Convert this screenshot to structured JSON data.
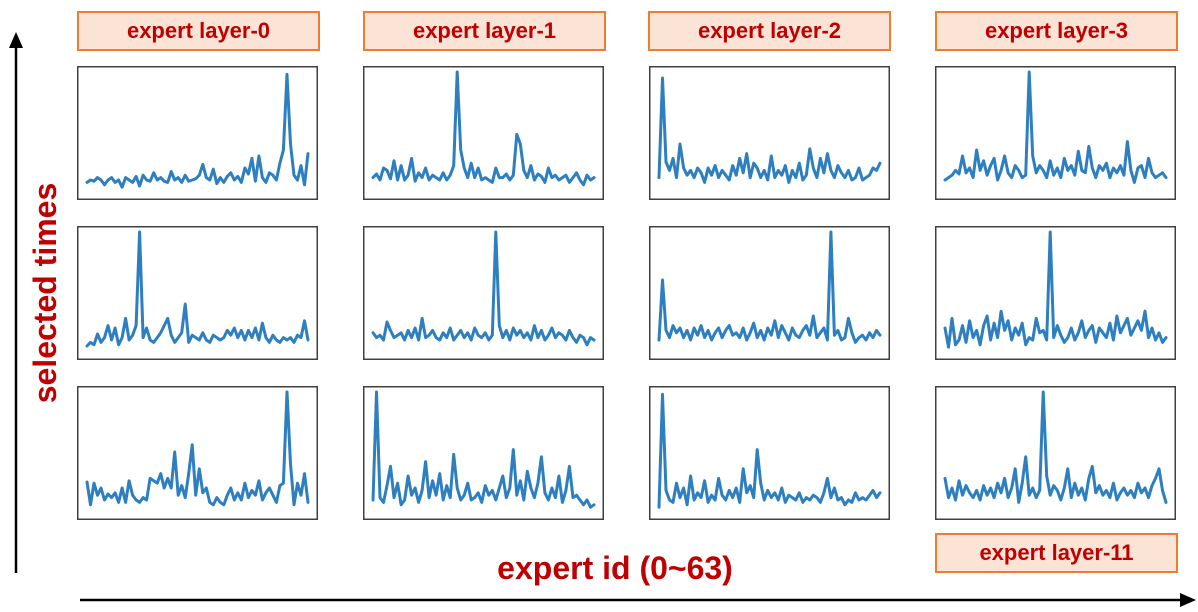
{
  "figure": {
    "x_axis_label": "expert id (0~63)",
    "y_axis_label": "selected times",
    "line_color": "#2e7fc0",
    "label_text_color": "#c00000",
    "label_fill_color": "#fbe3d6",
    "label_border_color": "#ed7d31"
  },
  "layer_labels": [
    "expert layer-0",
    "expert layer-1",
    "expert layer-2",
    "expert layer-3",
    "expert layer-11"
  ],
  "chart_data": [
    {
      "type": "line",
      "layer": "expert layer-0",
      "row": 0,
      "x_range": [
        0,
        63
      ],
      "ylim": [
        0,
        1
      ],
      "values": [
        0.08,
        0.1,
        0.09,
        0.12,
        0.1,
        0.06,
        0.1,
        0.12,
        0.08,
        0.1,
        0.04,
        0.12,
        0.1,
        0.08,
        0.13,
        0.05,
        0.14,
        0.1,
        0.09,
        0.16,
        0.1,
        0.12,
        0.09,
        0.08,
        0.17,
        0.1,
        0.12,
        0.08,
        0.14,
        0.09,
        0.1,
        0.11,
        0.14,
        0.23,
        0.12,
        0.1,
        0.19,
        0.07,
        0.12,
        0.08,
        0.13,
        0.16,
        0.1,
        0.13,
        0.08,
        0.2,
        0.15,
        0.28,
        0.09,
        0.3,
        0.12,
        0.08,
        0.16,
        0.14,
        0.1,
        0.24,
        0.35,
        0.98,
        0.4,
        0.14,
        0.1,
        0.22,
        0.06,
        0.32
      ]
    },
    {
      "type": "line",
      "layer": "expert layer-1",
      "row": 0,
      "x_range": [
        0,
        63
      ],
      "ylim": [
        0,
        1
      ],
      "values": [
        0.12,
        0.15,
        0.1,
        0.2,
        0.18,
        0.11,
        0.26,
        0.1,
        0.22,
        0.1,
        0.14,
        0.28,
        0.09,
        0.16,
        0.12,
        0.2,
        0.1,
        0.14,
        0.12,
        0.1,
        0.16,
        0.1,
        0.14,
        0.22,
        1.0,
        0.35,
        0.2,
        0.12,
        0.24,
        0.12,
        0.2,
        0.1,
        0.12,
        0.1,
        0.08,
        0.2,
        0.12,
        0.12,
        0.15,
        0.1,
        0.14,
        0.48,
        0.4,
        0.18,
        0.12,
        0.22,
        0.1,
        0.15,
        0.13,
        0.08,
        0.2,
        0.12,
        0.14,
        0.1,
        0.12,
        0.14,
        0.08,
        0.12,
        0.16,
        0.1,
        0.06,
        0.14,
        0.1,
        0.12
      ]
    },
    {
      "type": "line",
      "layer": "expert layer-2",
      "row": 0,
      "x_range": [
        0,
        63
      ],
      "ylim": [
        0,
        1
      ],
      "values": [
        0.12,
        0.95,
        0.25,
        0.18,
        0.28,
        0.12,
        0.4,
        0.2,
        0.14,
        0.18,
        0.12,
        0.2,
        0.16,
        0.08,
        0.2,
        0.14,
        0.22,
        0.12,
        0.18,
        0.14,
        0.1,
        0.22,
        0.14,
        0.28,
        0.16,
        0.32,
        0.12,
        0.24,
        0.2,
        0.12,
        0.18,
        0.1,
        0.3,
        0.12,
        0.18,
        0.14,
        0.22,
        0.08,
        0.18,
        0.12,
        0.24,
        0.1,
        0.14,
        0.36,
        0.2,
        0.12,
        0.28,
        0.16,
        0.32,
        0.18,
        0.12,
        0.22,
        0.16,
        0.12,
        0.18,
        0.1,
        0.12,
        0.2,
        0.1,
        0.12,
        0.14,
        0.2,
        0.18,
        0.24
      ]
    },
    {
      "type": "line",
      "layer": "expert layer-3",
      "row": 0,
      "x_range": [
        0,
        63
      ],
      "ylim": [
        0,
        1
      ],
      "values": [
        0.1,
        0.12,
        0.14,
        0.18,
        0.15,
        0.3,
        0.16,
        0.2,
        0.12,
        0.35,
        0.18,
        0.26,
        0.14,
        0.22,
        0.28,
        0.1,
        0.18,
        0.3,
        0.16,
        0.12,
        0.22,
        0.18,
        0.12,
        0.14,
        1.0,
        0.3,
        0.16,
        0.22,
        0.18,
        0.12,
        0.26,
        0.14,
        0.2,
        0.12,
        0.28,
        0.18,
        0.22,
        0.14,
        0.34,
        0.18,
        0.16,
        0.38,
        0.2,
        0.12,
        0.22,
        0.18,
        0.24,
        0.12,
        0.2,
        0.16,
        0.22,
        0.14,
        0.42,
        0.18,
        0.08,
        0.2,
        0.22,
        0.12,
        0.28,
        0.16,
        0.12,
        0.14,
        0.16,
        0.12
      ]
    },
    {
      "type": "line",
      "layer": "expert layer-0",
      "row": 1,
      "x_range": [
        0,
        63
      ],
      "ylim": [
        0,
        1
      ],
      "values": [
        0.05,
        0.08,
        0.06,
        0.15,
        0.08,
        0.12,
        0.22,
        0.1,
        0.2,
        0.06,
        0.12,
        0.28,
        0.1,
        0.14,
        0.22,
        1.0,
        0.12,
        0.2,
        0.1,
        0.08,
        0.12,
        0.16,
        0.22,
        0.28,
        0.14,
        0.08,
        0.12,
        0.16,
        0.4,
        0.08,
        0.14,
        0.12,
        0.1,
        0.16,
        0.1,
        0.08,
        0.14,
        0.12,
        0.1,
        0.12,
        0.18,
        0.14,
        0.2,
        0.12,
        0.18,
        0.1,
        0.18,
        0.12,
        0.2,
        0.1,
        0.24,
        0.12,
        0.08,
        0.14,
        0.1,
        0.08,
        0.12,
        0.1,
        0.12,
        0.08,
        0.14,
        0.12,
        0.26,
        0.1
      ]
    },
    {
      "type": "line",
      "layer": "expert layer-1",
      "row": 1,
      "x_range": [
        0,
        63
      ],
      "ylim": [
        0,
        1
      ],
      "values": [
        0.16,
        0.12,
        0.14,
        0.1,
        0.25,
        0.18,
        0.12,
        0.14,
        0.16,
        0.1,
        0.18,
        0.12,
        0.2,
        0.1,
        0.28,
        0.12,
        0.14,
        0.18,
        0.12,
        0.1,
        0.16,
        0.12,
        0.2,
        0.1,
        0.14,
        0.18,
        0.12,
        0.16,
        0.1,
        0.2,
        0.14,
        0.12,
        0.16,
        0.1,
        0.14,
        1.0,
        0.22,
        0.12,
        0.18,
        0.1,
        0.2,
        0.14,
        0.18,
        0.12,
        0.16,
        0.1,
        0.22,
        0.12,
        0.18,
        0.1,
        0.14,
        0.2,
        0.12,
        0.16,
        0.14,
        0.1,
        0.18,
        0.12,
        0.08,
        0.14,
        0.12,
        0.06,
        0.12,
        0.1
      ]
    },
    {
      "type": "line",
      "layer": "expert layer-2",
      "row": 1,
      "x_range": [
        0,
        63
      ],
      "ylim": [
        0,
        1
      ],
      "values": [
        0.1,
        0.6,
        0.18,
        0.12,
        0.22,
        0.16,
        0.2,
        0.12,
        0.18,
        0.1,
        0.2,
        0.14,
        0.22,
        0.12,
        0.18,
        0.1,
        0.16,
        0.2,
        0.12,
        0.18,
        0.22,
        0.14,
        0.16,
        0.12,
        0.2,
        0.1,
        0.16,
        0.24,
        0.12,
        0.18,
        0.1,
        0.2,
        0.14,
        0.26,
        0.12,
        0.22,
        0.16,
        0.1,
        0.2,
        0.14,
        0.12,
        0.18,
        0.22,
        0.14,
        0.3,
        0.12,
        0.16,
        0.2,
        0.1,
        1.0,
        0.14,
        0.18,
        0.1,
        0.12,
        0.28,
        0.16,
        0.08,
        0.12,
        0.14,
        0.1,
        0.16,
        0.12,
        0.18,
        0.14
      ]
    },
    {
      "type": "line",
      "layer": "expert layer-3",
      "row": 1,
      "x_range": [
        0,
        63
      ],
      "ylim": [
        0,
        1
      ],
      "values": [
        0.2,
        0.04,
        0.28,
        0.06,
        0.1,
        0.22,
        0.08,
        0.26,
        0.12,
        0.18,
        0.06,
        0.22,
        0.3,
        0.1,
        0.24,
        0.12,
        0.34,
        0.18,
        0.26,
        0.1,
        0.2,
        0.14,
        0.24,
        0.06,
        0.12,
        0.1,
        0.28,
        0.16,
        0.18,
        0.1,
        1.0,
        0.12,
        0.22,
        0.14,
        0.08,
        0.12,
        0.2,
        0.1,
        0.16,
        0.26,
        0.12,
        0.18,
        0.22,
        0.08,
        0.2,
        0.16,
        0.12,
        0.24,
        0.1,
        0.3,
        0.16,
        0.22,
        0.28,
        0.14,
        0.2,
        0.26,
        0.18,
        0.34,
        0.12,
        0.2,
        0.1,
        0.16,
        0.08,
        0.12
      ]
    },
    {
      "type": "line",
      "layer": "expert layer-0",
      "row": 2,
      "x_range": [
        0,
        63
      ],
      "ylim": [
        0,
        1
      ],
      "values": [
        0.25,
        0.06,
        0.24,
        0.14,
        0.2,
        0.1,
        0.15,
        0.12,
        0.16,
        0.08,
        0.2,
        0.08,
        0.26,
        0.14,
        0.1,
        0.08,
        0.12,
        0.1,
        0.28,
        0.26,
        0.24,
        0.32,
        0.2,
        0.28,
        0.2,
        0.5,
        0.14,
        0.22,
        0.12,
        0.32,
        0.56,
        0.14,
        0.36,
        0.16,
        0.2,
        0.08,
        0.06,
        0.12,
        0.08,
        0.06,
        0.14,
        0.2,
        0.1,
        0.16,
        0.1,
        0.24,
        0.12,
        0.18,
        0.14,
        0.26,
        0.1,
        0.16,
        0.2,
        0.14,
        0.08,
        0.22,
        0.24,
        1.0,
        0.4,
        0.06,
        0.24,
        0.14,
        0.32,
        0.08
      ]
    },
    {
      "type": "line",
      "layer": "expert layer-1",
      "row": 2,
      "x_range": [
        0,
        63
      ],
      "ylim": [
        0,
        1
      ],
      "values": [
        0.1,
        1.0,
        0.12,
        0.08,
        0.22,
        0.38,
        0.12,
        0.24,
        0.06,
        0.1,
        0.3,
        0.14,
        0.2,
        0.08,
        0.18,
        0.42,
        0.12,
        0.26,
        0.14,
        0.32,
        0.1,
        0.22,
        0.12,
        0.48,
        0.2,
        0.1,
        0.14,
        0.24,
        0.1,
        0.12,
        0.16,
        0.08,
        0.22,
        0.14,
        0.18,
        0.1,
        0.2,
        0.3,
        0.12,
        0.2,
        0.52,
        0.14,
        0.26,
        0.1,
        0.34,
        0.2,
        0.12,
        0.24,
        0.46,
        0.16,
        0.1,
        0.2,
        0.12,
        0.3,
        0.08,
        0.18,
        0.38,
        0.12,
        0.14,
        0.1,
        0.06,
        0.1,
        0.04,
        0.06
      ]
    },
    {
      "type": "line",
      "layer": "expert layer-2",
      "row": 2,
      "x_range": [
        0,
        63
      ],
      "ylim": [
        0,
        1
      ],
      "values": [
        0.04,
        0.98,
        0.18,
        0.1,
        0.08,
        0.24,
        0.12,
        0.2,
        0.06,
        0.3,
        0.1,
        0.16,
        0.12,
        0.26,
        0.08,
        0.14,
        0.1,
        0.28,
        0.14,
        0.1,
        0.18,
        0.12,
        0.2,
        0.08,
        0.36,
        0.16,
        0.22,
        0.12,
        0.52,
        0.24,
        0.1,
        0.18,
        0.12,
        0.16,
        0.1,
        0.2,
        0.08,
        0.14,
        0.12,
        0.1,
        0.16,
        0.08,
        0.12,
        0.1,
        0.14,
        0.12,
        0.08,
        0.16,
        0.28,
        0.12,
        0.2,
        0.1,
        0.12,
        0.06,
        0.1,
        0.08,
        0.16,
        0.1,
        0.12,
        0.1,
        0.14,
        0.18,
        0.12,
        0.16
      ]
    },
    {
      "type": "line",
      "layer": "expert layer-11",
      "row": 2,
      "x_range": [
        0,
        63
      ],
      "ylim": [
        0,
        1
      ],
      "values": [
        0.28,
        0.12,
        0.2,
        0.1,
        0.26,
        0.14,
        0.22,
        0.16,
        0.12,
        0.18,
        0.1,
        0.22,
        0.14,
        0.2,
        0.12,
        0.24,
        0.16,
        0.28,
        0.12,
        0.2,
        0.36,
        0.08,
        0.24,
        0.46,
        0.14,
        0.2,
        0.12,
        0.18,
        1.0,
        0.3,
        0.14,
        0.22,
        0.18,
        0.1,
        0.2,
        0.36,
        0.12,
        0.24,
        0.14,
        0.2,
        0.1,
        0.28,
        0.38,
        0.16,
        0.22,
        0.14,
        0.18,
        0.12,
        0.24,
        0.1,
        0.16,
        0.2,
        0.14,
        0.18,
        0.12,
        0.24,
        0.16,
        0.2,
        0.12,
        0.22,
        0.28,
        0.36,
        0.18,
        0.08
      ]
    }
  ]
}
